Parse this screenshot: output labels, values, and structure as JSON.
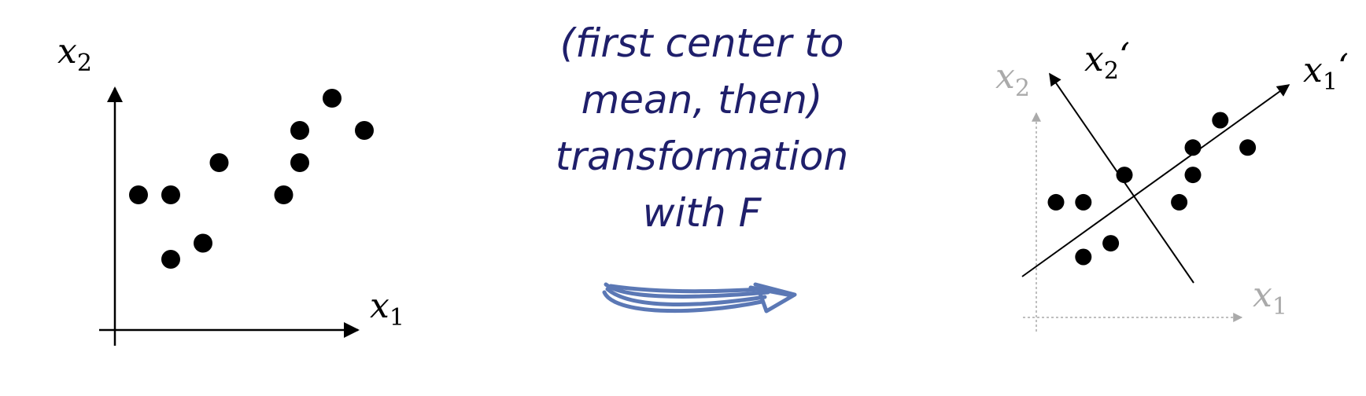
{
  "colors": {
    "ink": "#000000",
    "caption": "#1f1f6b",
    "arrow": "#5b78b5",
    "faded": "#aaaaaa"
  },
  "left_plot": {
    "x_axis_label": "x",
    "x_axis_subscript": "1",
    "y_axis_label": "x",
    "y_axis_subscript": "2",
    "points": [
      [
        0,
        4
      ],
      [
        1,
        2
      ],
      [
        1,
        4
      ],
      [
        2,
        2.5
      ],
      [
        2.5,
        5
      ],
      [
        4.5,
        4
      ],
      [
        5,
        5
      ],
      [
        5,
        6
      ],
      [
        6,
        7
      ],
      [
        7,
        6
      ]
    ]
  },
  "caption": {
    "lines": [
      "(first center to",
      "mean, then)",
      "transformation",
      "with F"
    ]
  },
  "right_plot": {
    "original_x_label": "x",
    "original_x_subscript": "1",
    "original_y_label": "x",
    "original_y_subscript": "2",
    "new_x_label": "x",
    "new_x_subscript": "1",
    "new_x_prime": "‘",
    "new_y_label": "x",
    "new_y_subscript": "2",
    "new_y_prime": "‘",
    "points": [
      [
        0,
        4
      ],
      [
        1,
        2
      ],
      [
        1,
        4
      ],
      [
        2,
        2.5
      ],
      [
        2.5,
        5
      ],
      [
        4.5,
        4
      ],
      [
        5,
        5
      ],
      [
        5,
        6
      ],
      [
        6,
        7
      ],
      [
        7,
        6
      ]
    ]
  },
  "transform_arrow": {
    "icon": "hand-drawn-right-arrow-icon"
  }
}
